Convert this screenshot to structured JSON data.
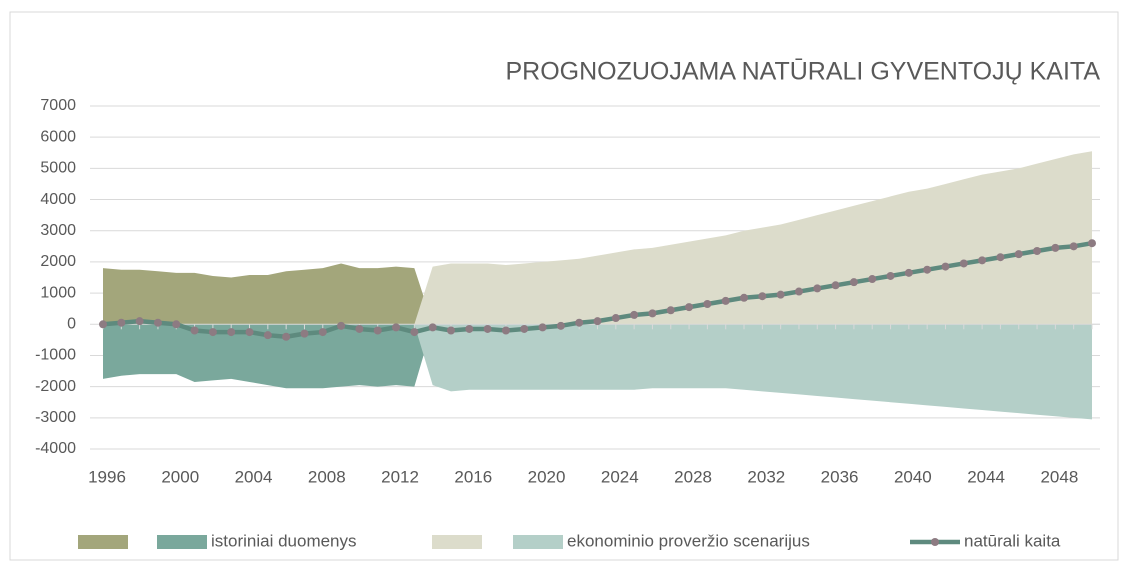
{
  "chart_data": {
    "type": "area",
    "title": "PROGNOZUOJAMA NATŪRALI GYVENTOJŲ KAITA",
    "x": [
      1996,
      1997,
      1998,
      1999,
      2000,
      2001,
      2002,
      2003,
      2004,
      2005,
      2006,
      2007,
      2008,
      2009,
      2010,
      2011,
      2012,
      2013,
      2014,
      2015,
      2016,
      2017,
      2018,
      2019,
      2020,
      2021,
      2022,
      2023,
      2024,
      2025,
      2026,
      2027,
      2028,
      2029,
      2030,
      2031,
      2032,
      2033,
      2034,
      2035,
      2036,
      2037,
      2038,
      2039,
      2040,
      2041,
      2042,
      2043,
      2044,
      2045,
      2046,
      2047,
      2048,
      2049,
      2050
    ],
    "xlim": [
      1996,
      2050
    ],
    "xticks": [
      1996,
      2000,
      2004,
      2008,
      2012,
      2016,
      2020,
      2024,
      2028,
      2032,
      2036,
      2040,
      2044,
      2048
    ],
    "ylim": [
      -4000,
      7000
    ],
    "yticks": [
      -4000,
      -3000,
      -2000,
      -1000,
      0,
      1000,
      2000,
      3000,
      4000,
      5000,
      6000,
      7000
    ],
    "grid": true,
    "legend": "bottom",
    "series": [
      {
        "name": null,
        "type": "area",
        "color": "#a3a67b",
        "values": [
          1800,
          1750,
          1750,
          1700,
          1650,
          1650,
          1550,
          1500,
          1580,
          1580,
          1700,
          1750,
          1800,
          1950,
          1800,
          1800,
          1850,
          1800,
          0,
          null,
          null,
          null,
          null,
          null,
          null,
          null,
          null,
          null,
          null,
          null,
          null,
          null,
          null,
          null,
          null,
          null,
          null,
          null,
          null,
          null,
          null,
          null,
          null,
          null,
          null,
          null,
          null,
          null,
          null,
          null,
          null,
          null,
          null,
          null,
          null
        ]
      },
      {
        "name": "istoriniai duomenys",
        "type": "area",
        "color": "#7aa89c",
        "values": [
          -1750,
          -1650,
          -1600,
          -1600,
          -1600,
          -1850,
          -1800,
          -1750,
          -1850,
          -1950,
          -2050,
          -2050,
          -2050,
          -2000,
          -1950,
          -2000,
          -1950,
          -2000,
          0,
          null,
          null,
          null,
          null,
          null,
          null,
          null,
          null,
          null,
          null,
          null,
          null,
          null,
          null,
          null,
          null,
          null,
          null,
          null,
          null,
          null,
          null,
          null,
          null,
          null,
          null,
          null,
          null,
          null,
          null,
          null,
          null,
          null,
          null,
          null,
          null
        ]
      },
      {
        "name": null,
        "type": "area",
        "color": "#dcdccb",
        "values": [
          null,
          null,
          null,
          null,
          null,
          null,
          null,
          null,
          null,
          null,
          null,
          null,
          null,
          null,
          null,
          null,
          null,
          0,
          1850,
          1950,
          1950,
          1950,
          1900,
          1950,
          2000,
          2050,
          2100,
          2200,
          2300,
          2400,
          2450,
          2550,
          2650,
          2750,
          2850,
          3000,
          3100,
          3200,
          3350,
          3500,
          3650,
          3800,
          3950,
          4100,
          4250,
          4350,
          4500,
          4650,
          4800,
          4900,
          5000,
          5150,
          5300,
          5450,
          5550
        ]
      },
      {
        "name": "ekonominio proveržio scenarijus",
        "type": "area",
        "color": "#b4cfc8",
        "values": [
          null,
          null,
          null,
          null,
          null,
          null,
          null,
          null,
          null,
          null,
          null,
          null,
          null,
          null,
          null,
          null,
          null,
          0,
          -1950,
          -2150,
          -2100,
          -2100,
          -2100,
          -2100,
          -2100,
          -2100,
          -2100,
          -2100,
          -2100,
          -2100,
          -2050,
          -2050,
          -2050,
          -2050,
          -2050,
          -2100,
          -2150,
          -2200,
          -2250,
          -2300,
          -2350,
          -2400,
          -2450,
          -2500,
          -2550,
          -2600,
          -2650,
          -2700,
          -2750,
          -2800,
          -2850,
          -2900,
          -2950,
          -3000,
          -3050
        ]
      },
      {
        "name": "natūrali kaita",
        "type": "line",
        "color": "#5e8a7e",
        "marker_color": "#8d7b82",
        "values": [
          0,
          50,
          100,
          50,
          0,
          -200,
          -250,
          -250,
          -250,
          -350,
          -400,
          -300,
          -250,
          -50,
          -150,
          -200,
          -100,
          -250,
          -100,
          -200,
          -150,
          -150,
          -200,
          -150,
          -100,
          -50,
          50,
          100,
          200,
          300,
          350,
          450,
          550,
          650,
          750,
          850,
          900,
          950,
          1050,
          1150,
          1250,
          1350,
          1450,
          1550,
          1650,
          1750,
          1850,
          1950,
          2050,
          2150,
          2250,
          2350,
          2450,
          2500,
          2600
        ]
      }
    ]
  }
}
